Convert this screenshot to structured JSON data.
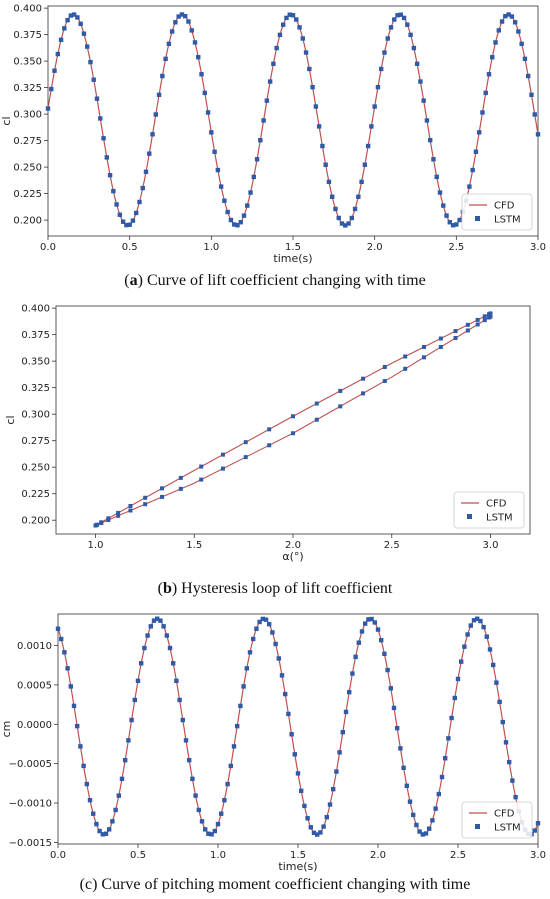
{
  "figure": {
    "caption_a": {
      "prefix": "(",
      "letter": "a",
      "text": ") Curve of lift coefficient changing with time"
    },
    "caption_b": {
      "prefix": "(",
      "letter": "b",
      "text": ") Hysteresis loop of lift coefficient"
    },
    "caption_c": {
      "text": "(c) Curve of pitching moment coefficient changing with time"
    }
  },
  "colors": {
    "cfd": "#c0504d",
    "lstm": "#2e5aa8",
    "axis": "#333333"
  },
  "chart_data": [
    {
      "id": "a",
      "type": "line",
      "xlabel": "time(s)",
      "ylabel": "cl",
      "xlim": [
        0,
        3.0
      ],
      "ylim": [
        0.185,
        0.402
      ],
      "xticks": [
        "0.0",
        "0.5",
        "1.0",
        "1.5",
        "2.0",
        "2.5",
        "3.0"
      ],
      "yticks": [
        "0.200",
        "0.225",
        "0.250",
        "0.275",
        "0.300",
        "0.325",
        "0.350",
        "0.375",
        "0.400"
      ],
      "legend": {
        "position": "lower-right",
        "entries": [
          "CFD",
          "LSTM"
        ]
      },
      "series": [
        {
          "name": "CFD",
          "kind": "line",
          "model": "cosine",
          "mean": 0.2945,
          "amplitude": 0.0995,
          "period": 0.666,
          "peak_time": 0.155,
          "x_range": [
            0,
            3.0
          ],
          "samples": 300
        },
        {
          "name": "LSTM",
          "kind": "scatter",
          "model": "cosine",
          "mean": 0.2945,
          "amplitude": 0.0995,
          "period": 0.666,
          "peak_time": 0.155,
          "x_range": [
            0,
            3.0
          ],
          "samples": 150
        }
      ]
    },
    {
      "id": "b",
      "type": "line",
      "xlabel": "α(°)",
      "ylabel": "cl",
      "xlim": [
        0.8,
        3.2
      ],
      "ylim": [
        0.187,
        0.402
      ],
      "xticks": [
        "1.0",
        "1.5",
        "2.0",
        "2.5",
        "3.0"
      ],
      "yticks": [
        "0.200",
        "0.225",
        "0.250",
        "0.275",
        "0.300",
        "0.325",
        "0.350",
        "0.375",
        "0.400"
      ],
      "legend": {
        "position": "lower-right",
        "entries": [
          "CFD",
          "LSTM"
        ]
      },
      "series": [
        {
          "name": "CFD",
          "kind": "loop-line",
          "upper": [
            [
              1.0,
              0.195
            ],
            [
              1.5,
              0.247
            ],
            [
              2.0,
              0.298
            ],
            [
              2.5,
              0.348
            ],
            [
              3.0,
              0.395
            ]
          ],
          "lower": [
            [
              1.0,
              0.195
            ],
            [
              1.5,
              0.235
            ],
            [
              2.0,
              0.282
            ],
            [
              2.5,
              0.335
            ],
            [
              3.0,
              0.392
            ]
          ]
        },
        {
          "name": "LSTM",
          "kind": "loop-scatter",
          "upper": [
            [
              1.0,
              0.195
            ],
            [
              1.5,
              0.247
            ],
            [
              2.0,
              0.298
            ],
            [
              2.5,
              0.348
            ],
            [
              3.0,
              0.395
            ]
          ],
          "lower": [
            [
              1.0,
              0.195
            ],
            [
              1.5,
              0.235
            ],
            [
              2.0,
              0.282
            ],
            [
              2.5,
              0.335
            ],
            [
              3.0,
              0.392
            ]
          ],
          "samples_per_branch": 26
        }
      ]
    },
    {
      "id": "c",
      "type": "line",
      "xlabel": "time(s)",
      "ylabel": "cm",
      "xlim": [
        0,
        3.0
      ],
      "ylim": [
        -0.00152,
        0.0014
      ],
      "xticks": [
        "0.0",
        "0.5",
        "1.0",
        "1.5",
        "2.0",
        "2.5",
        "3.0"
      ],
      "yticks": [
        "−0.0015",
        "−0.0010",
        "−0.0005",
        "0.0000",
        "0.0005",
        "0.0010"
      ],
      "legend": {
        "position": "lower-right",
        "entries": [
          "CFD",
          "LSTM"
        ]
      },
      "series": [
        {
          "name": "CFD",
          "kind": "line",
          "model": "cosine",
          "mean": -3e-05,
          "amplitude": 0.00137,
          "period": 0.666,
          "peak_time": 0.62,
          "x_range": [
            0,
            3.0
          ],
          "samples": 300
        },
        {
          "name": "LSTM",
          "kind": "scatter",
          "model": "cosine",
          "mean": -3e-05,
          "amplitude": 0.00137,
          "period": 0.666,
          "peak_time": 0.62,
          "x_range": [
            0,
            3.0
          ],
          "samples": 150
        }
      ]
    }
  ]
}
